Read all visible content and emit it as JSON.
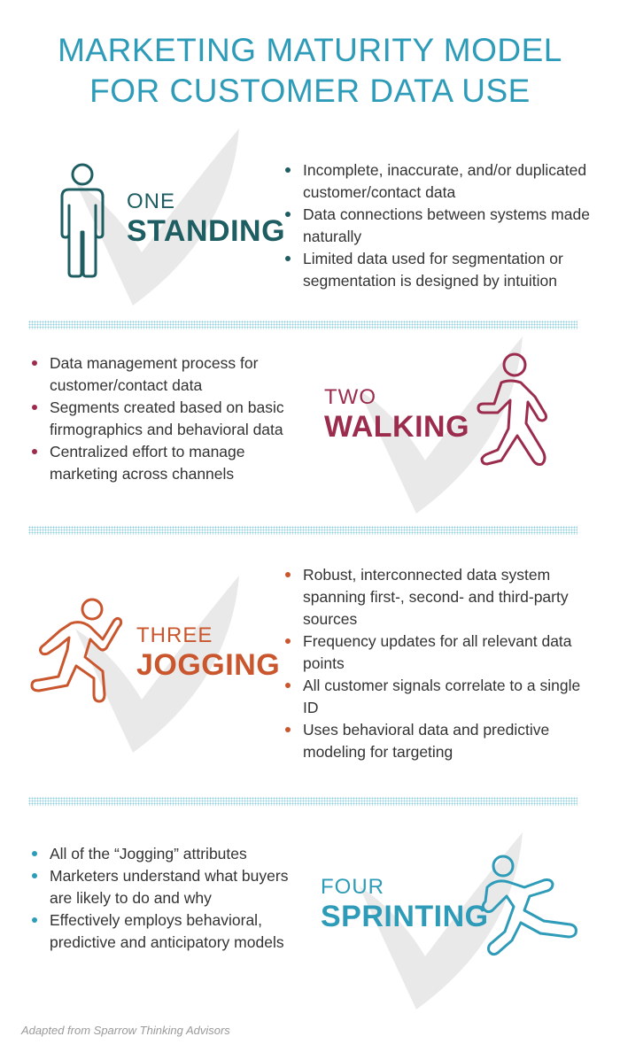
{
  "title": {
    "line1": "MARKETING MATURITY MODEL",
    "line2": "FOR CUSTOMER DATA USE"
  },
  "colors": {
    "title": "#2e9bb8",
    "one": "#1e5e63",
    "two": "#9b2c4d",
    "three": "#c9562d",
    "four": "#2e9bb8",
    "checkmark": "#e9e9e9",
    "divider": "#8fcfdd"
  },
  "stages": [
    {
      "number": "ONE",
      "name": "STANDING",
      "icon": "standing-person-icon",
      "bullets": [
        "Incomplete, inaccurate, and/or duplicated customer/contact data",
        "Data connections between systems made naturally",
        "Limited data used for segmentation or segmentation is designed by intuition"
      ]
    },
    {
      "number": "TWO",
      "name": "WALKING",
      "icon": "walking-person-icon",
      "bullets": [
        "Data management process for customer/contact data",
        "Segments created based on basic firmographics and behavioral data",
        "Centralized effort to manage marketing across channels"
      ]
    },
    {
      "number": "THREE",
      "name": "JOGGING",
      "icon": "jogging-person-icon",
      "bullets": [
        "Robust, interconnected data system spanning first-, second- and third-party sources",
        "Frequency updates for all relevant data points",
        "All customer signals correlate to a single ID",
        "Uses behavioral data and predictive modeling for targeting"
      ]
    },
    {
      "number": "FOUR",
      "name": "SPRINTING",
      "icon": "sprinting-person-icon",
      "bullets": [
        "All of the “Jogging” attributes",
        "Marketers understand what buyers are likely to do and why",
        "Effectively employs behavioral, predictive and anticipatory models"
      ]
    }
  ],
  "footer": "Adapted from Sparrow Thinking Advisors"
}
